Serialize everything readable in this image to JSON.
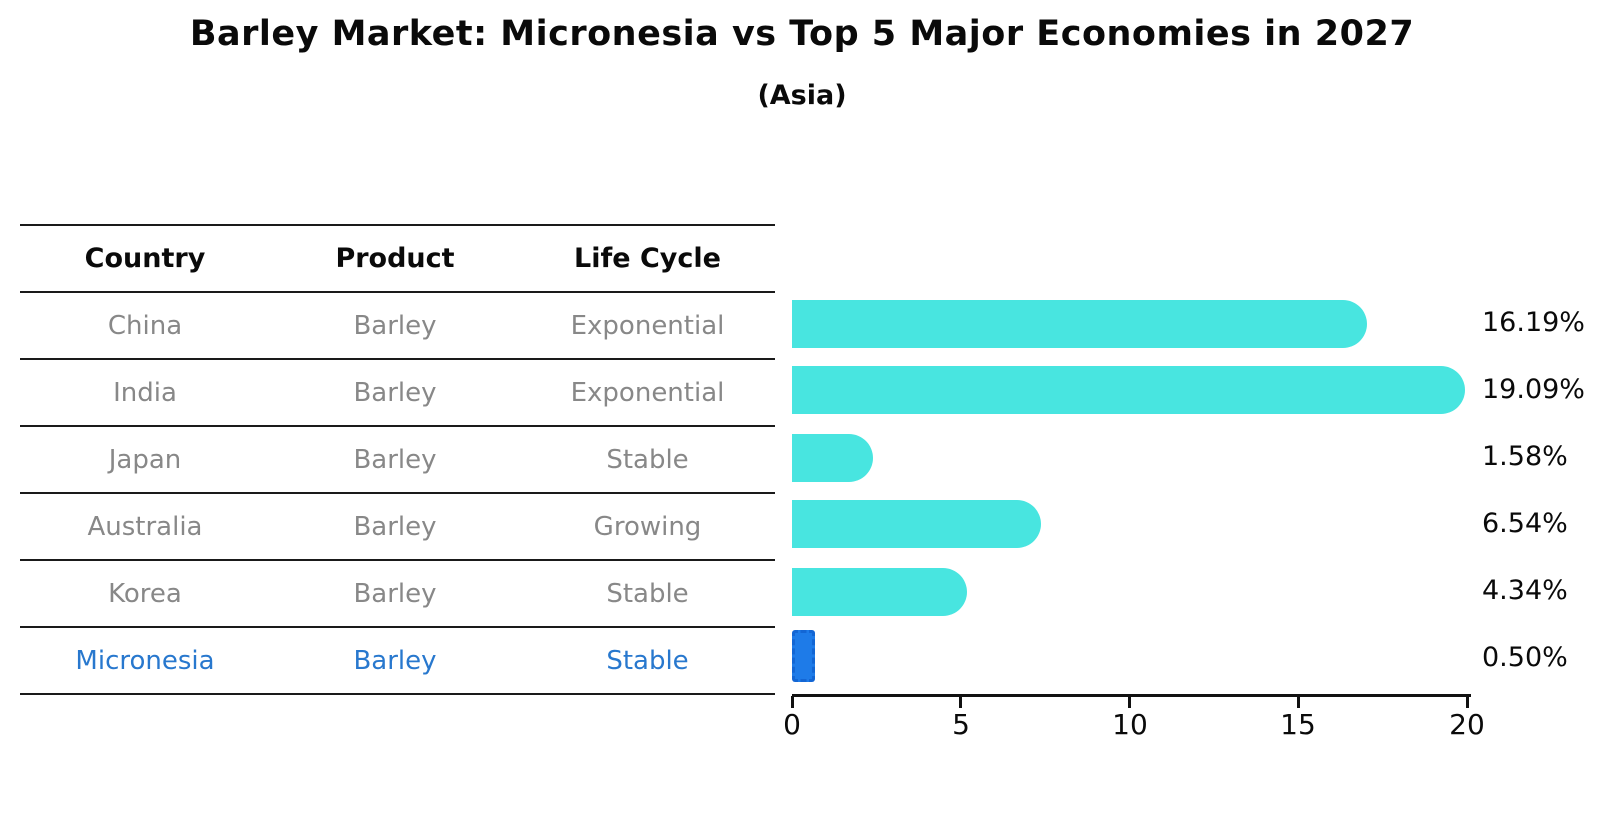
{
  "title": "Barley Market: Micronesia vs Top 5 Major Economies in 2027",
  "subtitle": "(Asia)",
  "table": {
    "headers": [
      "Country",
      "Product",
      "Life Cycle"
    ],
    "rows": [
      [
        "China",
        "Barley",
        "Exponential"
      ],
      [
        "India",
        "Barley",
        "Exponential"
      ],
      [
        "Japan",
        "Barley",
        "Stable"
      ],
      [
        "Australia",
        "Barley",
        "Growing"
      ],
      [
        "Korea",
        "Barley",
        "Stable"
      ],
      [
        "Micronesia",
        "Barley",
        "Stable"
      ]
    ]
  },
  "chart_data": {
    "type": "bar",
    "orientation": "horizontal",
    "title": "Barley Market: Micronesia vs Top 5 Major Economies in 2027",
    "subtitle": "(Asia)",
    "categories": [
      "China",
      "India",
      "Japan",
      "Australia",
      "Korea",
      "Micronesia"
    ],
    "values": [
      16.19,
      19.09,
      1.58,
      6.54,
      4.34,
      0.5
    ],
    "value_labels": [
      "16.19%",
      "19.09%",
      "1.58%",
      "6.54%",
      "4.34%",
      "0.50%"
    ],
    "xlabel": "",
    "ylabel": "",
    "xlim": [
      0,
      20.05
    ],
    "x_ticks": [
      0,
      5,
      10,
      15,
      20
    ],
    "grid": false,
    "legend": "none",
    "highlight_index": 5,
    "colors": {
      "bar": "#48E5E0",
      "highlight_bar": "#1E7BE8",
      "highlight_text": "#2878CE",
      "table_text": "#888888",
      "text": "#0a0a0a"
    }
  }
}
